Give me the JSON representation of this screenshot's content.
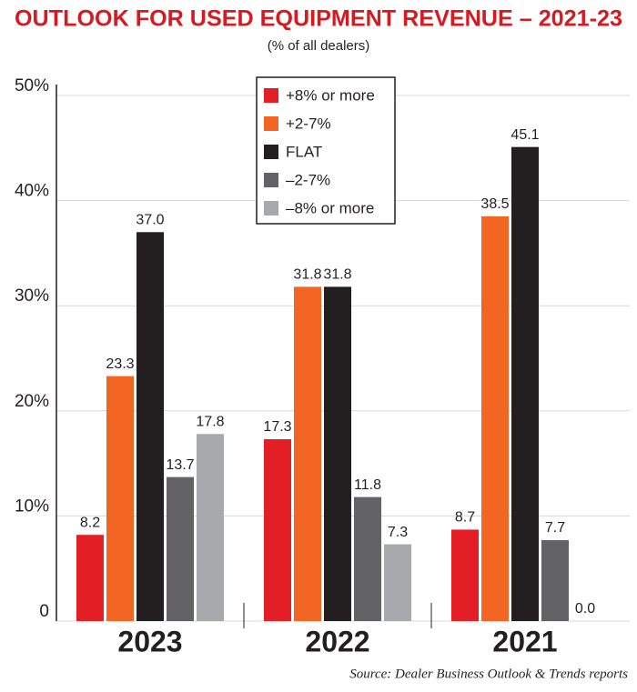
{
  "chart_data": {
    "type": "bar",
    "title": "OUTLOOK FOR USED EQUIPMENT REVENUE – 2021-23",
    "subtitle": "(% of all dealers)",
    "source": "Source: Dealer Business Outlook & Trends reports",
    "categories": [
      "2023",
      "2022",
      "2021"
    ],
    "series": [
      {
        "name": "+8% or more",
        "color": "#e31e24",
        "values": [
          8.2,
          17.3,
          8.7
        ],
        "value_labels": [
          "8.2",
          "17.3",
          "8.7"
        ]
      },
      {
        "name": "+2-7%",
        "color": "#f26522",
        "values": [
          23.3,
          31.8,
          38.5
        ],
        "value_labels": [
          "23.3",
          "31.8",
          "38.5"
        ]
      },
      {
        "name": "FLAT",
        "color": "#231f20",
        "values": [
          37.0,
          31.8,
          45.1
        ],
        "value_labels": [
          "37.0",
          "31.8",
          "45.1"
        ]
      },
      {
        "name": "–2-7%",
        "color": "#636366",
        "values": [
          13.7,
          11.8,
          7.7
        ],
        "value_labels": [
          "13.7",
          "11.8",
          "7.7"
        ]
      },
      {
        "name": "–8% or more",
        "color": "#a7a9ac",
        "values": [
          17.8,
          7.3,
          0.0
        ],
        "value_labels": [
          "17.8",
          "7.3",
          "0.0"
        ]
      }
    ],
    "ylim": [
      0,
      50
    ],
    "yticks": [
      0,
      {
        "value": 10,
        "label": "10%"
      },
      {
        "value": 20,
        "label": "20%"
      },
      {
        "value": 30,
        "label": "30%"
      },
      {
        "value": 40,
        "label": "40%"
      },
      {
        "value": 50,
        "label": "50%"
      }
    ],
    "grid": true,
    "legend": "upper center"
  }
}
